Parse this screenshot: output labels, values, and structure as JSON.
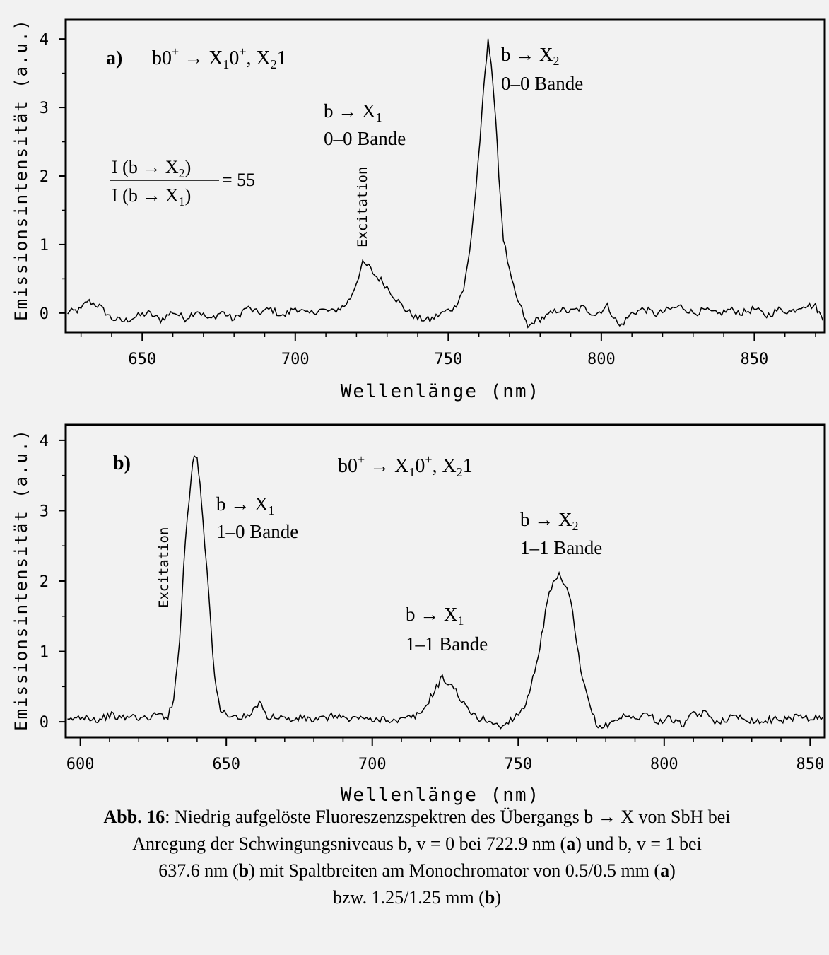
{
  "colors": {
    "line": "#000000",
    "background": "#f2f2f2"
  },
  "chart_data": [
    {
      "type": "line",
      "panel_label": "a)",
      "title_main": "b0",
      "title_sup1": "+",
      "title_mid": " → X",
      "title_sub1": "1",
      "title_mid2": "0",
      "title_sup2": "+",
      "title_mid3": ", X",
      "title_sub2": "2",
      "title_end": "1",
      "xlabel": "Wellenlänge (nm)",
      "ylabel": "Emissionsintensität (a.u.)",
      "xlim": [
        625,
        873
      ],
      "ylim": [
        -0.28,
        4.28
      ],
      "xticks": [
        650,
        700,
        750,
        800,
        850
      ],
      "yticks": [
        0,
        1,
        2,
        3,
        4
      ],
      "ratio": {
        "numerator": "I (b → X",
        "num_sub": "2",
        "den": "I (b → X",
        "den_sub": "1",
        "close": ")",
        "value": "= 55"
      },
      "annotations": [
        {
          "id": "x1",
          "line1": "b → X",
          "sub": "1",
          "line2": "0–0 Bande"
        },
        {
          "id": "x2",
          "line1": "b → X",
          "sub": "2",
          "line2": "0–0 Bande"
        },
        {
          "id": "exc",
          "text": "Excitation"
        }
      ],
      "series": [
        {
          "x": [
            625,
            630,
            632,
            636,
            640,
            644,
            648,
            652,
            656,
            660,
            664,
            668,
            672,
            676,
            680,
            684,
            688,
            692,
            696,
            700,
            704,
            708,
            712,
            716,
            718,
            720,
            722,
            724,
            726,
            728,
            730,
            733,
            736,
            740,
            744,
            748,
            752,
            755,
            757,
            759,
            761,
            762,
            763,
            764,
            765,
            766,
            767,
            768,
            770,
            772,
            774,
            776,
            778,
            782,
            786,
            790,
            794,
            798,
            802,
            806,
            810,
            814,
            818,
            822,
            826,
            830,
            834,
            838,
            842,
            846,
            850,
            854,
            858,
            862,
            866,
            870,
            873
          ],
          "y": [
            0.0,
            0.05,
            0.18,
            0.1,
            -0.08,
            -0.12,
            -0.05,
            0.0,
            -0.1,
            0.02,
            -0.08,
            0.04,
            -0.1,
            0.02,
            -0.1,
            0.08,
            0.0,
            0.06,
            -0.05,
            0.08,
            -0.02,
            0.05,
            0.02,
            0.1,
            0.22,
            0.45,
            0.72,
            0.68,
            0.55,
            0.48,
            0.38,
            0.2,
            0.05,
            -0.08,
            -0.1,
            0.0,
            0.08,
            0.35,
            0.9,
            1.8,
            2.9,
            3.5,
            3.95,
            3.7,
            3.1,
            2.4,
            1.7,
            1.1,
            0.6,
            0.25,
            0.05,
            -0.22,
            -0.12,
            -0.05,
            0.05,
            0.02,
            0.08,
            -0.02,
            0.1,
            -0.2,
            0.0,
            0.06,
            -0.02,
            0.05,
            0.1,
            0.0,
            0.04,
            -0.02,
            0.05,
            0.0,
            0.06,
            -0.04,
            0.05,
            0.02,
            0.12,
            0.1,
            -0.15
          ]
        }
      ]
    },
    {
      "type": "line",
      "panel_label": "b)",
      "title_main": "b0",
      "title_sup1": "+",
      "title_mid": " → X",
      "title_sub1": "1",
      "title_mid2": "0",
      "title_sup2": "+",
      "title_mid3": ", X",
      "title_sub2": "2",
      "title_end": "1",
      "xlabel": "Wellenlänge (nm)",
      "ylabel": "Emissionsintensität (a.u.)",
      "xlim": [
        595,
        855
      ],
      "ylim": [
        -0.22,
        4.22
      ],
      "xticks": [
        600,
        650,
        700,
        750,
        800,
        850
      ],
      "yticks": [
        0,
        1,
        2,
        3,
        4
      ],
      "annotations": [
        {
          "id": "x1a",
          "line1": "b → X",
          "sub": "1",
          "line2": "1–0 Bande"
        },
        {
          "id": "x1b",
          "line1": "b → X",
          "sub": "1",
          "line2": "1–1 Bande"
        },
        {
          "id": "x2",
          "line1": "b → X",
          "sub": "2",
          "line2": "1–1 Bande"
        },
        {
          "id": "exc",
          "text": "Excitation"
        }
      ],
      "series": [
        {
          "x": [
            595,
            598,
            602,
            606,
            610,
            614,
            618,
            622,
            626,
            630,
            632,
            634,
            636,
            638,
            639,
            640,
            641,
            642,
            644,
            646,
            648,
            650,
            654,
            658,
            662,
            664,
            668,
            672,
            676,
            680,
            684,
            688,
            692,
            696,
            700,
            704,
            708,
            712,
            716,
            718,
            720,
            722,
            724,
            726,
            728,
            730,
            732,
            736,
            740,
            744,
            748,
            752,
            755,
            758,
            760,
            762,
            764,
            766,
            768,
            770,
            772,
            774,
            776,
            778,
            782,
            786,
            790,
            794,
            798,
            802,
            806,
            810,
            814,
            818,
            822,
            826,
            830,
            834,
            838,
            842,
            846,
            850,
            855
          ],
          "y": [
            0.0,
            0.05,
            0.08,
            0.02,
            0.1,
            0.05,
            0.08,
            0.04,
            0.1,
            0.08,
            0.3,
            1.2,
            2.6,
            3.5,
            3.8,
            3.75,
            3.4,
            2.9,
            1.8,
            0.6,
            0.15,
            0.12,
            0.05,
            0.08,
            0.3,
            0.05,
            0.08,
            0.02,
            0.06,
            0.02,
            0.05,
            0.1,
            0.02,
            0.08,
            0.0,
            0.06,
            0.0,
            0.05,
            0.1,
            0.2,
            0.35,
            0.5,
            0.62,
            0.55,
            0.48,
            0.35,
            0.2,
            0.05,
            0.02,
            -0.08,
            0.05,
            0.2,
            0.6,
            1.2,
            1.7,
            1.95,
            2.05,
            1.95,
            1.7,
            1.1,
            0.6,
            0.3,
            0.05,
            -0.1,
            0.0,
            0.08,
            0.05,
            0.12,
            0.0,
            0.05,
            -0.05,
            0.1,
            0.12,
            0.0,
            0.05,
            0.08,
            0.02,
            0.0,
            0.05,
            0.02,
            0.1,
            0.05,
            0.05
          ]
        }
      ]
    }
  ],
  "caption": {
    "bold_label": "Abb. 16",
    "line1": ": Niedrig aufgelöste Fluoreszenzspektren des Übergangs b → X  von SbH bei",
    "line2": "Anregung der Schwingungsniveaus b, v = 0 bei 722.9 nm (",
    "line2_bold": "a",
    "line2_end": ") und b, v = 1 bei",
    "line3": "637.6 nm (",
    "line3_bold": "b",
    "line3_mid": ") mit Spaltbreiten am Monochromator von 0.5/0.5 mm (",
    "line3_bold2": "a",
    "line3_end": ")",
    "line4": "bzw. 1.25/1.25 mm (",
    "line4_bold": "b",
    "line4_end": ")"
  }
}
